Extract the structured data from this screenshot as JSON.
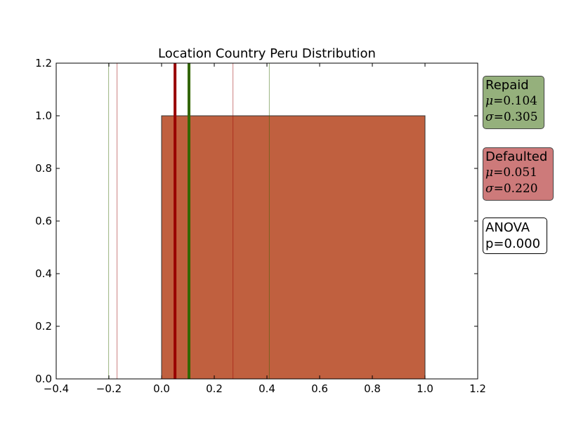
{
  "chart_data": {
    "type": "bar",
    "title": "Location Country Peru Distribution",
    "xlabel": "",
    "ylabel": "",
    "xlim": [
      -0.4,
      1.2
    ],
    "ylim": [
      0.0,
      1.2
    ],
    "xticks": [
      "-0.4",
      "-0.2",
      "0.0",
      "0.2",
      "0.4",
      "0.6",
      "0.8",
      "1.0",
      "1.2"
    ],
    "yticks": [
      "0.0",
      "0.2",
      "0.4",
      "0.6",
      "0.8",
      "1.0",
      "1.2"
    ],
    "grid": false,
    "bars": [
      {
        "x_start": 0.0,
        "x_end": 1.0,
        "value": 1.0,
        "color": "#c0603f"
      }
    ],
    "series": [
      {
        "name": "Repaid",
        "mean": 0.104,
        "std": 0.305,
        "color": "#336600",
        "box_color": "#95b07c"
      },
      {
        "name": "Defaulted",
        "mean": 0.051,
        "std": 0.22,
        "color": "#990000",
        "box_color": "#cd7a7a"
      }
    ],
    "vertical_lines": [
      {
        "series": "Repaid",
        "kind": "mean",
        "x": 0.104
      },
      {
        "series": "Repaid",
        "kind": "mean-std",
        "x": -0.201
      },
      {
        "series": "Repaid",
        "kind": "mean+std",
        "x": 0.409
      },
      {
        "series": "Defaulted",
        "kind": "mean",
        "x": 0.051
      },
      {
        "series": "Defaulted",
        "kind": "mean-std",
        "x": -0.169
      },
      {
        "series": "Defaulted",
        "kind": "mean+std",
        "x": 0.271
      }
    ],
    "annotations": {
      "repaid": {
        "label": "Repaid",
        "mu_symbol": "μ",
        "mu_text": "=0.104",
        "sigma_symbol": "σ",
        "sigma_text": "=0.305"
      },
      "defaulted": {
        "label": "Defaulted",
        "mu_symbol": "μ",
        "mu_text": "=0.051",
        "sigma_symbol": "σ",
        "sigma_text": "=0.220"
      },
      "anova": {
        "line1": "ANOVA",
        "line2": "p=0.000"
      }
    }
  }
}
